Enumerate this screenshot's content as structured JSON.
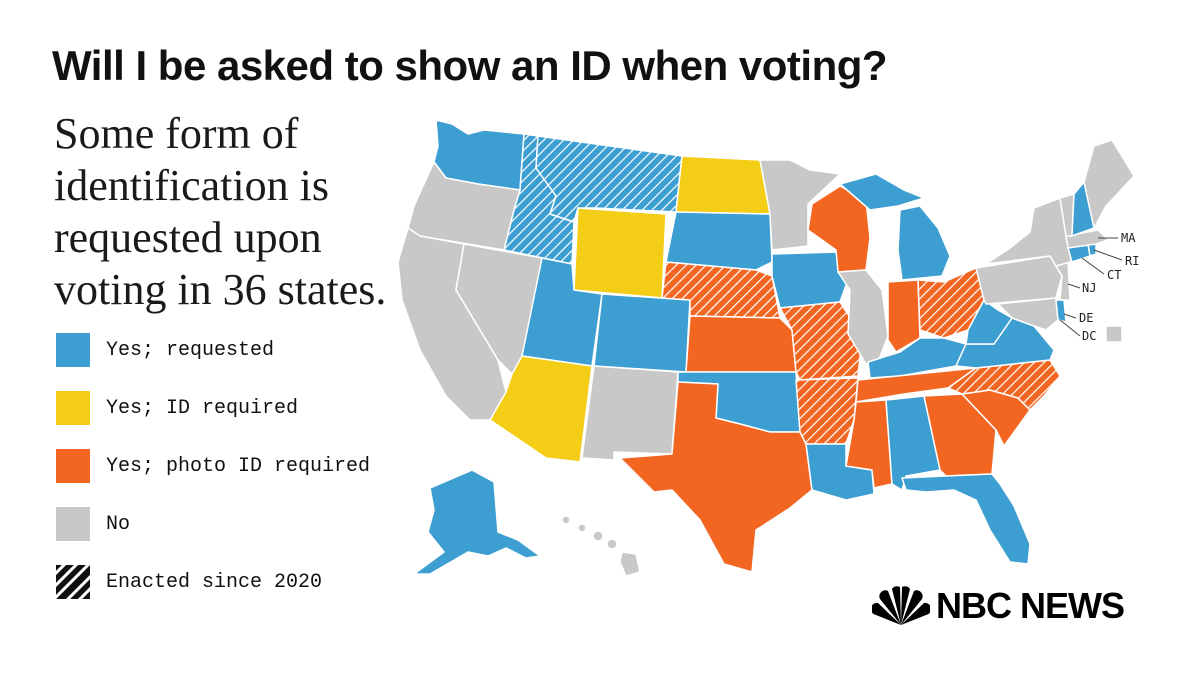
{
  "title": "Will I be asked to show an ID when voting?",
  "subtitle": "Some form of identification is requested upon voting in 36 states.",
  "colors": {
    "requested": "#3d9ed2",
    "id_required": "#f4cd17",
    "photo_id_required": "#f26622",
    "no": "#c8c8c8"
  },
  "legend": [
    {
      "key": "requested",
      "label": "Yes; requested"
    },
    {
      "key": "id_required",
      "label": "Yes; ID required"
    },
    {
      "key": "photo_id_required",
      "label": "Yes; photo ID required"
    },
    {
      "key": "no",
      "label": "No"
    },
    {
      "key": "hatched",
      "label": "Enacted since 2020"
    }
  ],
  "state_labels": [
    "MA",
    "RI",
    "CT",
    "NJ",
    "DE",
    "DC"
  ],
  "logo": {
    "text": "NBC NEWS"
  }
}
